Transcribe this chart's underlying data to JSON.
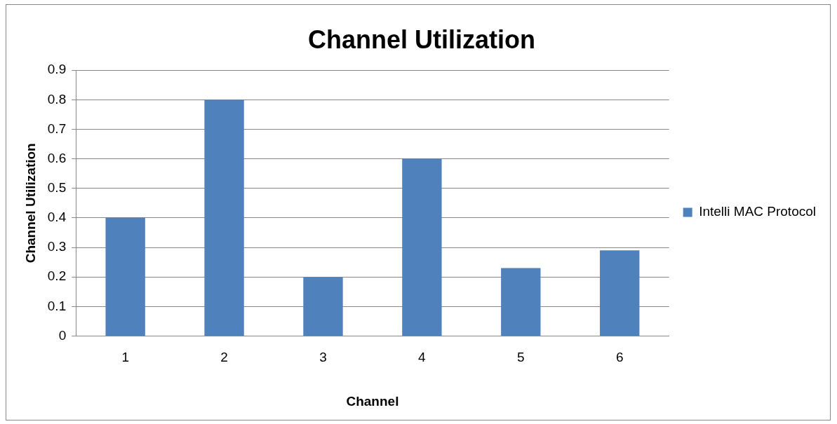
{
  "chart_data": {
    "type": "bar",
    "title": "Channel Utilization",
    "xlabel": "Channel",
    "ylabel": "Channel Utilization",
    "categories": [
      "1",
      "2",
      "3",
      "4",
      "5",
      "6"
    ],
    "series": [
      {
        "name": "Intelli MAC Protocol",
        "color": "#4f81bd",
        "values": [
          0.4,
          0.8,
          0.2,
          0.6,
          0.23,
          0.29
        ]
      }
    ],
    "ylim": [
      0,
      0.9
    ],
    "yticks": [
      0,
      0.1,
      0.2,
      0.3,
      0.4,
      0.5,
      0.6,
      0.7,
      0.8,
      0.9
    ],
    "grid": "y",
    "legend": "right"
  }
}
